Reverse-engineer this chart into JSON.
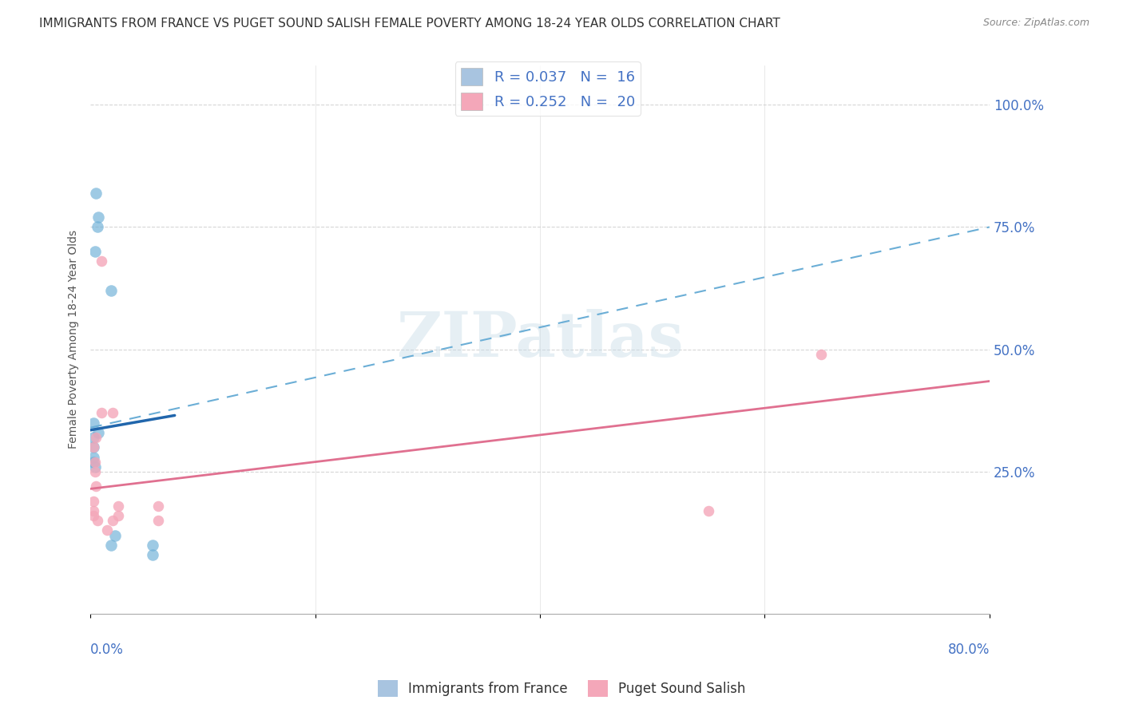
{
  "title": "IMMIGRANTS FROM FRANCE VS PUGET SOUND SALISH FEMALE POVERTY AMONG 18-24 YEAR OLDS CORRELATION CHART",
  "source": "Source: ZipAtlas.com",
  "ylabel": "Female Poverty Among 18-24 Year Olds",
  "right_yticks": [
    0.0,
    0.25,
    0.5,
    0.75,
    1.0
  ],
  "right_yticklabels": [
    "",
    "25.0%",
    "50.0%",
    "75.0%",
    "100.0%"
  ],
  "legend_label1": "R = 0.037   N =  16",
  "legend_label2": "R = 0.252   N =  20",
  "legend_color1": "#a8c4e0",
  "legend_color2": "#f4a7b9",
  "watermark": "ZIPatlas",
  "blue_scatter_x": [
    0.005,
    0.007,
    0.006,
    0.004,
    0.018,
    0.003,
    0.003,
    0.003,
    0.003,
    0.003,
    0.004,
    0.007,
    0.018,
    0.022,
    0.055,
    0.055
  ],
  "blue_scatter_y": [
    0.82,
    0.77,
    0.75,
    0.7,
    0.62,
    0.35,
    0.32,
    0.3,
    0.28,
    0.27,
    0.26,
    0.33,
    0.1,
    0.12,
    0.1,
    0.08
  ],
  "pink_scatter_x": [
    0.01,
    0.003,
    0.003,
    0.003,
    0.003,
    0.004,
    0.004,
    0.005,
    0.005,
    0.006,
    0.01,
    0.015,
    0.02,
    0.02,
    0.025,
    0.025,
    0.06,
    0.06,
    0.55,
    0.65
  ],
  "pink_scatter_y": [
    0.68,
    0.19,
    0.17,
    0.16,
    0.3,
    0.27,
    0.25,
    0.32,
    0.22,
    0.15,
    0.37,
    0.13,
    0.15,
    0.37,
    0.18,
    0.16,
    0.18,
    0.15,
    0.17,
    0.49
  ],
  "blue_solid_line_x": [
    0.0,
    0.075
  ],
  "blue_solid_line_y": [
    0.335,
    0.365
  ],
  "pink_solid_line_x": [
    0.0,
    0.8
  ],
  "pink_solid_line_y": [
    0.215,
    0.435
  ],
  "dashed_line_x": [
    0.0,
    0.8
  ],
  "dashed_line_y": [
    0.34,
    0.75
  ],
  "xlim": [
    0.0,
    0.8
  ],
  "ylim": [
    -0.04,
    1.08
  ],
  "dot_size_blue": 110,
  "dot_size_pink": 95,
  "blue_color": "#6baed6",
  "pink_color": "#f4a7b9",
  "blue_line_color": "#2166ac",
  "pink_line_color": "#e07090",
  "dashed_line_color": "#6baed6",
  "grid_color": "#cccccc",
  "title_fontsize": 11,
  "axis_label_fontsize": 10,
  "tick_fontsize": 12,
  "right_tick_color": "#4472c4"
}
